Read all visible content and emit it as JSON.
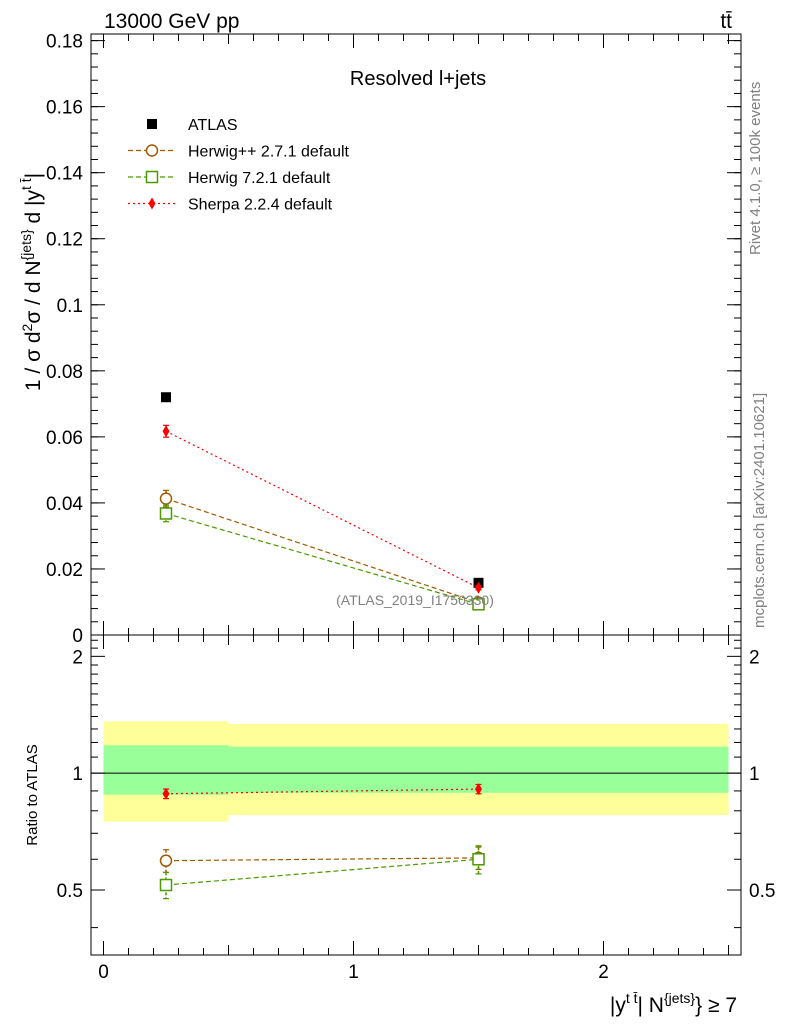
{
  "header": {
    "energy_label": "13000 GeV pp",
    "process_label": "tt̄"
  },
  "side_labels": {
    "rivet": "Rivet 4.1.0, ≥ 100k events",
    "source": "mcplots.cern.ch [arXiv:2401.10621]"
  },
  "chart_data": [
    {
      "type": "scatter",
      "title": "Resolved l+jets",
      "watermark": "(ATLAS_2019_I1750330)",
      "ylabel": "1 / σ d²σ / d N^{jets} d |y^{t̄t}|",
      "xlabel": "|y^{t̄t}| N^{jets} ≥ 7",
      "xlim": [
        -0.05,
        2.55
      ],
      "ylim": [
        0,
        0.182
      ],
      "yticks": [
        0,
        0.02,
        0.04,
        0.06,
        0.08,
        0.1,
        0.12,
        0.14,
        0.16,
        0.18
      ],
      "ytick_labels": [
        "0",
        "0.02",
        "0.04",
        "0.06",
        "0.08",
        "0.1",
        "0.12",
        "0.14",
        "0.16",
        "0.18"
      ],
      "x": [
        0.25,
        1.5
      ],
      "series": [
        {
          "name": "ATLAS",
          "style": "data",
          "color": "#000000",
          "values": [
            0.072,
            0.0158
          ],
          "errors": [
            0.0008,
            0.0005
          ]
        },
        {
          "name": "Herwig++ 2.7.1 default",
          "style": "circle",
          "color": "#a05a00",
          "values": [
            0.0413,
            0.0098
          ],
          "errors": [
            0.0025,
            0.0007
          ]
        },
        {
          "name": "Herwig 7.2.1 default",
          "style": "square",
          "color": "#4a9a00",
          "values": [
            0.0368,
            0.0093
          ],
          "errors": [
            0.0025,
            0.0007
          ]
        },
        {
          "name": "Sherpa 2.2.4 default",
          "style": "diamond",
          "color": "#ff0000",
          "values": [
            0.0617,
            0.0143
          ],
          "errors": [
            0.0018,
            0.0006
          ]
        }
      ]
    },
    {
      "type": "scatter",
      "ylabel": "Ratio to ATLAS",
      "xlim": [
        -0.05,
        2.55
      ],
      "ylim": [
        0.34,
        2.27
      ],
      "yticks": [
        0.5,
        1,
        2
      ],
      "ytick_labels": [
        "0.5",
        "1",
        "2"
      ],
      "xticks": [
        0,
        1,
        2
      ],
      "xtick_labels": [
        "0",
        "1",
        "2"
      ],
      "reference_line": 1,
      "bands": [
        {
          "name": "stat",
          "color": "#99ff99",
          "bins": [
            {
              "x0": 0,
              "x1": 0.5,
              "lo": 0.88,
              "hi": 1.18
            },
            {
              "x0": 0.5,
              "x1": 2.5,
              "lo": 0.89,
              "hi": 1.17
            }
          ]
        },
        {
          "name": "syst",
          "color": "#ffff99",
          "bins": [
            {
              "x0": 0,
              "x1": 0.5,
              "lo": 0.75,
              "hi": 1.36
            },
            {
              "x0": 0.5,
              "x1": 2.5,
              "lo": 0.78,
              "hi": 1.34
            }
          ]
        }
      ],
      "x": [
        0.25,
        1.5
      ],
      "series": [
        {
          "name": "Herwig++ 2.7.1 default",
          "style": "circle",
          "color": "#a05a00",
          "values": [
            0.595,
            0.605
          ],
          "errors": [
            0.04,
            0.04
          ]
        },
        {
          "name": "Herwig 7.2.1 default",
          "style": "square",
          "color": "#4a9a00",
          "values": [
            0.515,
            0.6
          ],
          "errors": [
            0.04,
            0.05
          ]
        },
        {
          "name": "Sherpa 2.2.4 default",
          "style": "diamond",
          "color": "#ff0000",
          "values": [
            0.885,
            0.91
          ],
          "errors": [
            0.025,
            0.025
          ]
        }
      ]
    }
  ]
}
